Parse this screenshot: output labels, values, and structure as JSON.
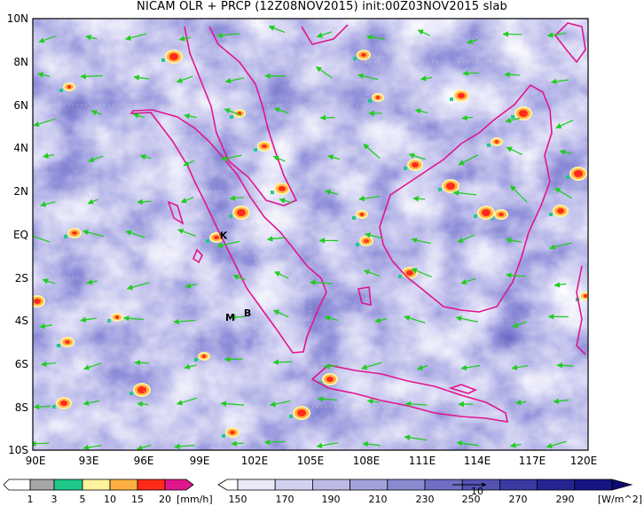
{
  "title": "NICAM OLR + PRCP (12Z08NOV2015) init:00Z03NOV2015 slab",
  "map": {
    "lat_labels": [
      "10N",
      "8N",
      "6N",
      "4N",
      "2N",
      "EQ",
      "2S",
      "4S",
      "6S",
      "8S",
      "10S"
    ],
    "lon_labels": [
      "90E",
      "93E",
      "96E",
      "99E",
      "102E",
      "105E",
      "108E",
      "111E",
      "114E",
      "117E",
      "120E"
    ],
    "lat_range": [
      -10,
      10
    ],
    "lon_range": [
      90,
      120
    ],
    "place_marks": [
      {
        "text": "K",
        "lon": 100.1,
        "lat": -0.2
      },
      {
        "text": "M",
        "lon": 100.4,
        "lat": -4.0
      },
      {
        "text": "B",
        "lon": 101.4,
        "lat": -3.8
      }
    ],
    "coast_color": "#e0168c",
    "vector_color": "#22cc22"
  },
  "precip_legend": {
    "labels": [
      "1",
      "3",
      "5",
      "10",
      "15",
      "20"
    ],
    "unit": "[mm/h]",
    "colors": [
      "#ffffff",
      "#a6a6a6",
      "#1fc98a",
      "#fff29e",
      "#ffb040",
      "#ff2a1a",
      "#e0168c"
    ]
  },
  "olr_legend": {
    "labels": [
      "150",
      "170",
      "190",
      "210",
      "230",
      "250",
      "270",
      "290"
    ],
    "unit": "[W/m^2]",
    "colors": [
      "#ffffff",
      "#e9e9f8",
      "#d2d2ef",
      "#bbbbe6",
      "#a3a3dc",
      "#8a8ad1",
      "#6f6fc4",
      "#5353b3",
      "#3a3aa2",
      "#242493",
      "#151585",
      "#0b0b70"
    ],
    "vector_ref": "10"
  }
}
